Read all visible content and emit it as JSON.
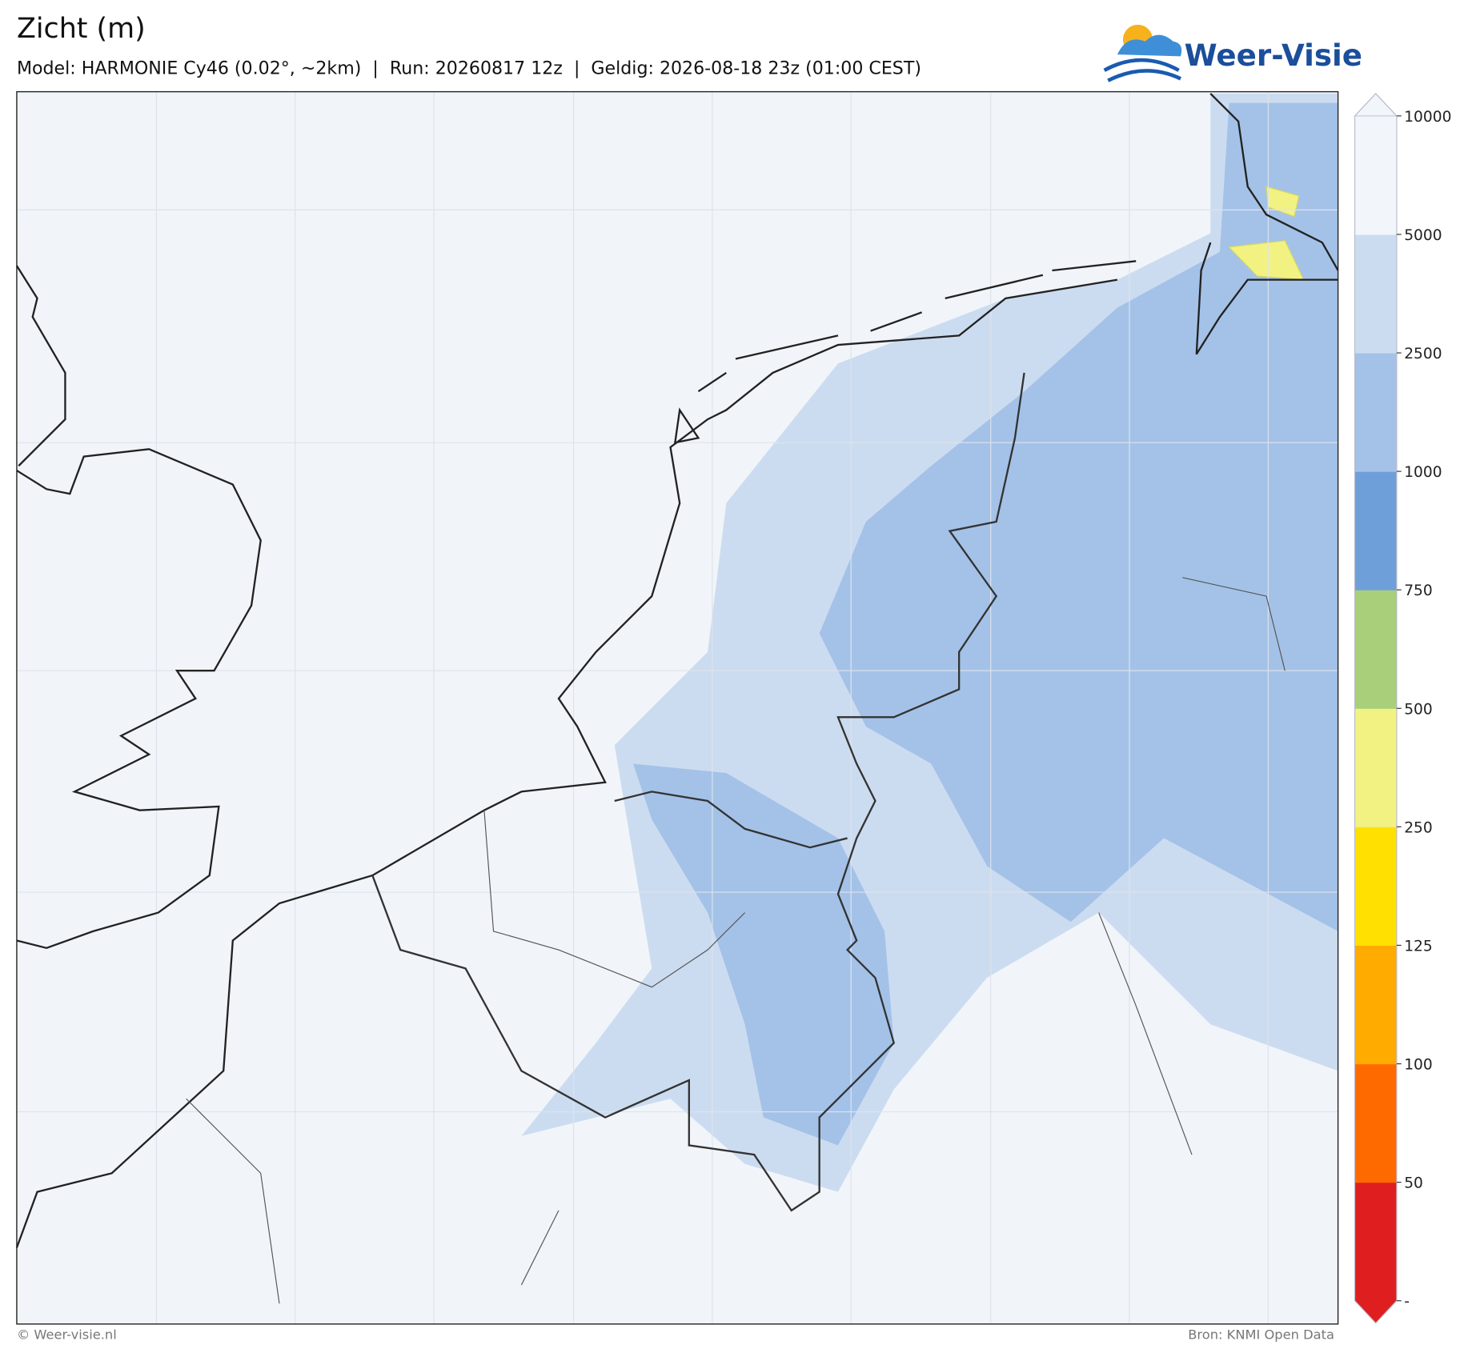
{
  "header": {
    "title": "Zicht (m)",
    "subtitle": "Model: HARMONIE Cy46 (0.02°, ~2km)  |  Run: 20260817 12z  |  Geldig: 2026-08-18 23z (01:00 CEST)",
    "logo": "Weer-Visie"
  },
  "colorbar": {
    "ticks": [
      50,
      100,
      125,
      250,
      500,
      750,
      1000,
      2500,
      5000,
      10000
    ],
    "min_label": "-",
    "colors": [
      "#df1f1f",
      "#ff6a00",
      "#ffab00",
      "#ffe000",
      "#f2f283",
      "#a9cf7a",
      "#6f9fd8",
      "#a4c2e8",
      "#ccdcf0",
      "#f2f5fa"
    ]
  },
  "footer": {
    "left": "© Weer-visie.nl",
    "right": "Bron: KNMI Open Data"
  }
}
